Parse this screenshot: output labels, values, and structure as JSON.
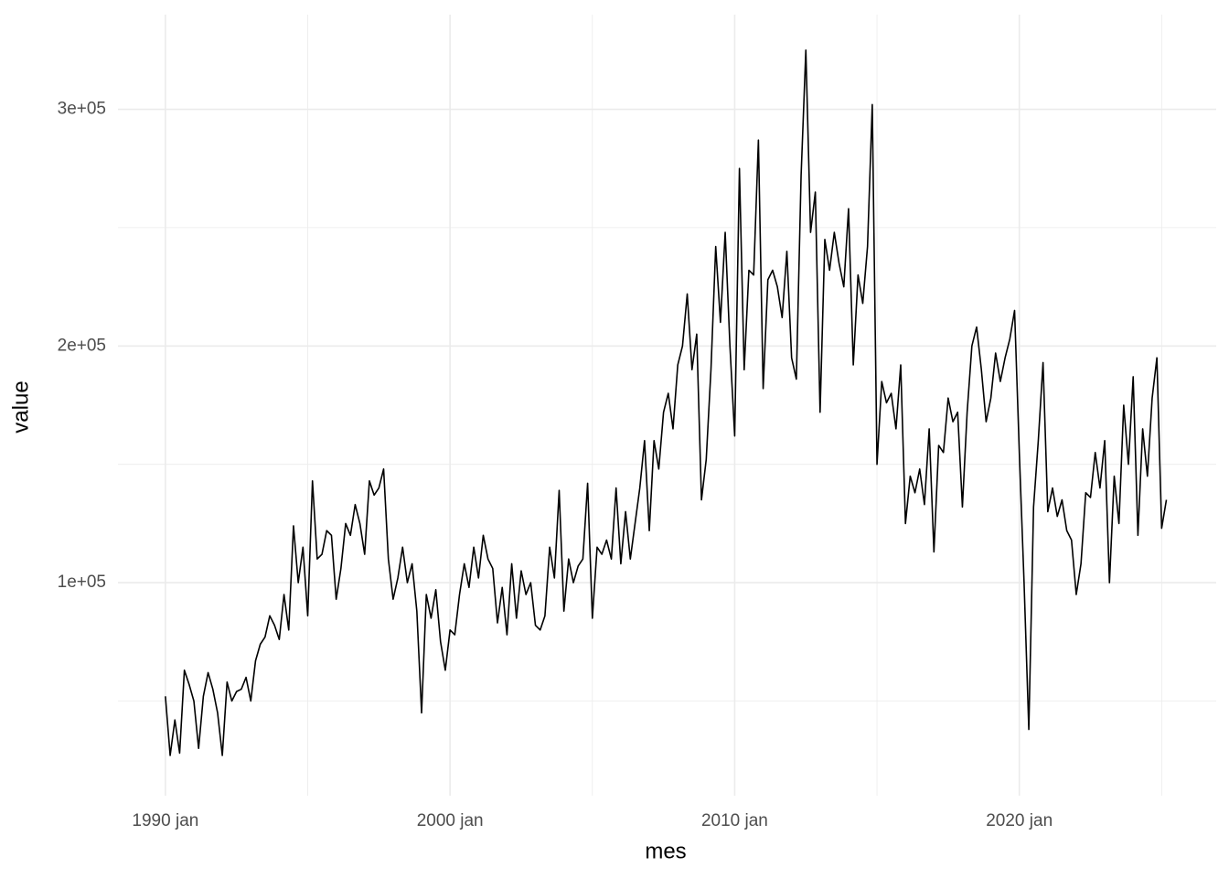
{
  "chart_data": {
    "type": "line",
    "x_label": "mes",
    "y_label": "value",
    "color": "#000000",
    "grid": true,
    "x": [
      "1990-01",
      "1990-03",
      "1990-05",
      "1990-07",
      "1990-09",
      "1990-11",
      "1991-01",
      "1991-03",
      "1991-05",
      "1991-07",
      "1991-09",
      "1991-11",
      "1992-01",
      "1992-03",
      "1992-05",
      "1992-07",
      "1992-09",
      "1992-11",
      "1993-01",
      "1993-03",
      "1993-05",
      "1993-07",
      "1993-09",
      "1993-11",
      "1994-01",
      "1994-03",
      "1994-05",
      "1994-07",
      "1994-09",
      "1994-11",
      "1995-01",
      "1995-03",
      "1995-05",
      "1995-07",
      "1995-09",
      "1995-11",
      "1996-01",
      "1996-03",
      "1996-05",
      "1996-07",
      "1996-09",
      "1996-11",
      "1997-01",
      "1997-03",
      "1997-05",
      "1997-07",
      "1997-09",
      "1997-11",
      "1998-01",
      "1998-03",
      "1998-05",
      "1998-07",
      "1998-09",
      "1998-11",
      "1999-01",
      "1999-03",
      "1999-05",
      "1999-07",
      "1999-09",
      "1999-11",
      "2000-01",
      "2000-03",
      "2000-05",
      "2000-07",
      "2000-09",
      "2000-11",
      "2001-01",
      "2001-03",
      "2001-05",
      "2001-07",
      "2001-09",
      "2001-11",
      "2002-01",
      "2002-03",
      "2002-05",
      "2002-07",
      "2002-09",
      "2002-11",
      "2003-01",
      "2003-03",
      "2003-05",
      "2003-07",
      "2003-09",
      "2003-11",
      "2004-01",
      "2004-03",
      "2004-05",
      "2004-07",
      "2004-09",
      "2004-11",
      "2005-01",
      "2005-03",
      "2005-05",
      "2005-07",
      "2005-09",
      "2005-11",
      "2006-01",
      "2006-03",
      "2006-05",
      "2006-07",
      "2006-09",
      "2006-11",
      "2007-01",
      "2007-03",
      "2007-05",
      "2007-07",
      "2007-09",
      "2007-11",
      "2008-01",
      "2008-03",
      "2008-05",
      "2008-07",
      "2008-09",
      "2008-11",
      "2009-01",
      "2009-03",
      "2009-05",
      "2009-07",
      "2009-09",
      "2009-11",
      "2010-01",
      "2010-03",
      "2010-05",
      "2010-07",
      "2010-09",
      "2010-11",
      "2011-01",
      "2011-03",
      "2011-05",
      "2011-07",
      "2011-09",
      "2011-11",
      "2012-01",
      "2012-03",
      "2012-05",
      "2012-07",
      "2012-09",
      "2012-11",
      "2013-01",
      "2013-03",
      "2013-05",
      "2013-07",
      "2013-09",
      "2013-11",
      "2014-01",
      "2014-03",
      "2014-05",
      "2014-07",
      "2014-09",
      "2014-11",
      "2015-01",
      "2015-03",
      "2015-05",
      "2015-07",
      "2015-09",
      "2015-11",
      "2016-01",
      "2016-03",
      "2016-05",
      "2016-07",
      "2016-09",
      "2016-11",
      "2017-01",
      "2017-03",
      "2017-05",
      "2017-07",
      "2017-09",
      "2017-11",
      "2018-01",
      "2018-03",
      "2018-05",
      "2018-07",
      "2018-09",
      "2018-11",
      "2019-01",
      "2019-03",
      "2019-05",
      "2019-07",
      "2019-09",
      "2019-11",
      "2020-01",
      "2020-03",
      "2020-05",
      "2020-07",
      "2020-09",
      "2020-11",
      "2021-01",
      "2021-03",
      "2021-05",
      "2021-07",
      "2021-09",
      "2021-11",
      "2022-01",
      "2022-03",
      "2022-05",
      "2022-07",
      "2022-09",
      "2022-11",
      "2023-01",
      "2023-03",
      "2023-05",
      "2023-07",
      "2023-09",
      "2023-11",
      "2024-01",
      "2024-03",
      "2024-05",
      "2024-07",
      "2024-09",
      "2024-11",
      "2025-01",
      "2025-03"
    ],
    "values": [
      52000,
      27000,
      42000,
      28000,
      63000,
      57000,
      50000,
      30000,
      52000,
      62000,
      55000,
      45000,
      27000,
      58000,
      50000,
      54000,
      55000,
      60000,
      50000,
      67000,
      74000,
      77000,
      86000,
      82000,
      76000,
      95000,
      80000,
      124000,
      100000,
      115000,
      86000,
      143000,
      110000,
      112000,
      122000,
      120000,
      93000,
      106000,
      125000,
      120000,
      133000,
      125000,
      112000,
      143000,
      137000,
      140000,
      148000,
      110000,
      93000,
      102000,
      115000,
      100000,
      108000,
      88000,
      45000,
      95000,
      85000,
      97000,
      75000,
      63000,
      80000,
      78000,
      95000,
      108000,
      98000,
      115000,
      102000,
      120000,
      110000,
      106000,
      83000,
      98000,
      78000,
      108000,
      85000,
      105000,
      95000,
      100000,
      82000,
      80000,
      86000,
      115000,
      102000,
      139000,
      88000,
      110000,
      100000,
      107000,
      110000,
      142000,
      85000,
      115000,
      112000,
      118000,
      110000,
      140000,
      108000,
      130000,
      110000,
      125000,
      140000,
      160000,
      122000,
      160000,
      148000,
      172000,
      180000,
      165000,
      192000,
      200000,
      222000,
      190000,
      205000,
      135000,
      152000,
      190000,
      242000,
      210000,
      248000,
      200000,
      162000,
      275000,
      190000,
      232000,
      230000,
      287000,
      182000,
      228000,
      232000,
      225000,
      212000,
      240000,
      195000,
      186000,
      272000,
      325000,
      248000,
      265000,
      172000,
      245000,
      232000,
      248000,
      235000,
      225000,
      258000,
      192000,
      230000,
      218000,
      242000,
      302000,
      150000,
      185000,
      176000,
      180000,
      165000,
      192000,
      125000,
      145000,
      138000,
      148000,
      133000,
      165000,
      113000,
      158000,
      155000,
      178000,
      168000,
      172000,
      132000,
      172000,
      200000,
      208000,
      190000,
      168000,
      178000,
      197000,
      185000,
      195000,
      203000,
      215000,
      155000,
      100000,
      38000,
      132000,
      160000,
      193000,
      130000,
      140000,
      128000,
      135000,
      122000,
      118000,
      95000,
      108000,
      138000,
      136000,
      155000,
      140000,
      160000,
      100000,
      145000,
      125000,
      175000,
      150000,
      187000,
      120000,
      165000,
      145000,
      178000,
      195000,
      123000,
      135000
    ],
    "xlim": [
      "1988-05",
      "2026-12"
    ],
    "xticks": [
      {
        "value": "1990-01",
        "label": "1990 jan"
      },
      {
        "value": "2000-01",
        "label": "2000 jan"
      },
      {
        "value": "2010-01",
        "label": "2010 jan"
      },
      {
        "value": "2020-01",
        "label": "2020 jan"
      }
    ],
    "minor_xticks": [
      "1995-01",
      "2005-01",
      "2015-01",
      "2025-01"
    ],
    "ylim": [
      10000,
      340000
    ],
    "yticks": [
      {
        "value": 100000,
        "label": "1e+05"
      },
      {
        "value": 200000,
        "label": "2e+05"
      },
      {
        "value": 300000,
        "label": "3e+05"
      }
    ],
    "minor_yticks": [
      50000,
      150000,
      250000
    ]
  }
}
